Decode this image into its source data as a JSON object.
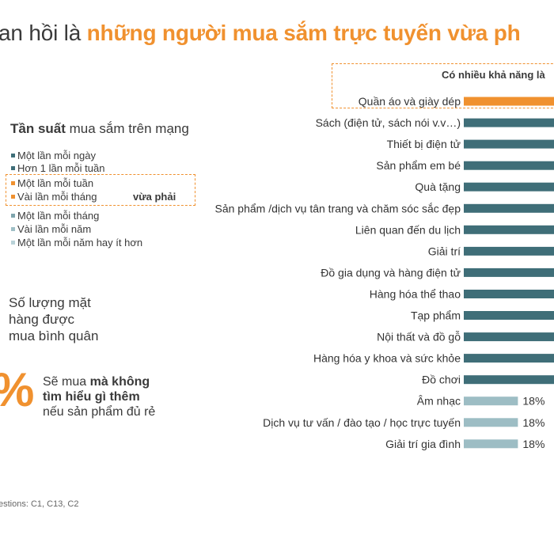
{
  "header": {
    "title_prefix": "an hồi là ",
    "title_accent": "những người mua sắm trực tuyến vừa ph"
  },
  "chart_header": "Có nhiều khả năng là",
  "frequency": {
    "title_bold": "Tần suất",
    "title_rest": " mua sắm trên mạng",
    "legend": [
      {
        "label": "Một lần mỗi ngày",
        "color": "#3f6e78"
      },
      {
        "label": "Hơn 1 lần mỗi tuần",
        "color": "#3f6e78"
      },
      {
        "label": "Một lần mỗi tuần",
        "color": "#f0912f"
      },
      {
        "label": "Vài lần mỗi tháng",
        "color": "#f0912f"
      },
      {
        "label": "Một lần mỗi tháng",
        "color": "#7fa5ad"
      },
      {
        "label": "Vài lần mỗi năm",
        "color": "#9fbfc6"
      },
      {
        "label": "Một lần mỗi năm hay ít hơn",
        "color": "#b9d2d8"
      }
    ],
    "highlight_label": "vừa phải"
  },
  "quantity": {
    "lines": [
      "Số lượng mặt",
      "hàng được",
      "mua bình quân"
    ]
  },
  "impulse": {
    "percent": "%",
    "line1_pre": "Sẽ mua ",
    "line1_bold": "mà không",
    "line2_bold": "tìm hiểu gì thêm",
    "line3": "nếu sản phẩm đủ rẻ"
  },
  "footnote": "estions: C1, C13, C2",
  "colors": {
    "accent": "#f0912f",
    "dark_bar": "#3f6e78",
    "light_bar": "#9dbdc4"
  },
  "chart_data": {
    "type": "bar",
    "orientation": "horizontal",
    "categories": [
      "Quần áo và giày dép",
      "Sách (điện tử, sách nói v.v…)",
      "Thiết bị điện tử",
      "Sản phẩm em bé",
      "Quà tặng",
      "Sản phẩm /dịch vụ  tân trang và chăm sóc sắc đẹp",
      "Liên quan đến du lịch",
      "Giải trí",
      "Đồ gia dụng và hàng điện tử",
      "Hàng hóa thể thao",
      "Tạp phẩm",
      "Nội thất và đồ gỗ",
      "Hàng hóa y khoa và sức khỏe",
      "Đồ chơi",
      "Âm nhạc",
      "Dịch vụ tư vấn / đào tạo / học trực tuyến",
      "Giải trí gia đình"
    ],
    "values": [
      null,
      null,
      null,
      null,
      null,
      null,
      null,
      null,
      null,
      null,
      null,
      null,
      null,
      null,
      18,
      18,
      18
    ],
    "data_labels": [
      "",
      "",
      "",
      "",
      "",
      "",
      "",
      "",
      "",
      "",
      "",
      "",
      "",
      "",
      "18%",
      "18%",
      "18%"
    ],
    "highlighted": [
      true,
      false,
      false,
      false,
      false,
      false,
      false,
      false,
      false,
      false,
      false,
      false,
      false,
      false,
      false,
      false,
      false
    ],
    "light": [
      false,
      false,
      false,
      false,
      false,
      false,
      false,
      false,
      false,
      false,
      false,
      false,
      false,
      false,
      true,
      true,
      true
    ]
  }
}
